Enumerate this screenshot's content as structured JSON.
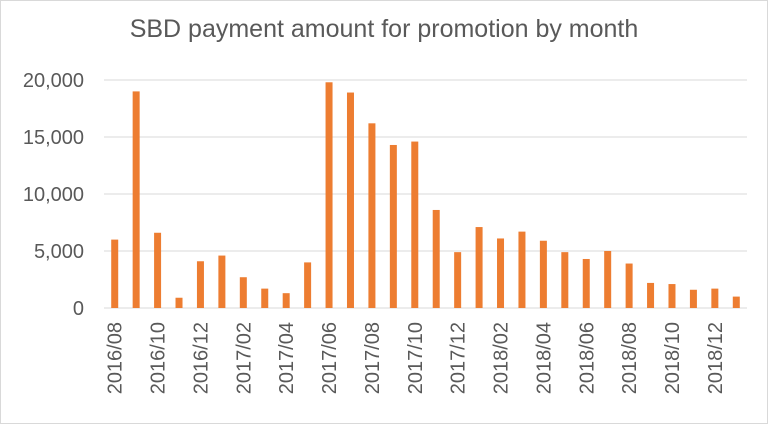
{
  "chart_data": {
    "type": "bar",
    "title": "SBD payment amount for promotion by month",
    "xlabel": "",
    "ylabel": "",
    "ylim": [
      0,
      20000
    ],
    "yticks": [
      0,
      5000,
      10000,
      15000,
      20000
    ],
    "ytick_labels": [
      "0",
      "5,000",
      "10,000",
      "15,000",
      "20,000"
    ],
    "grid": true,
    "legend": "none",
    "bar_color": "#ed7d31",
    "categories": [
      "2016/08",
      "2016/09",
      "2016/10",
      "2016/11",
      "2016/12",
      "2017/01",
      "2017/02",
      "2017/03",
      "2017/04",
      "2017/05",
      "2017/06",
      "2017/07",
      "2017/08",
      "2017/09",
      "2017/10",
      "2017/11",
      "2017/12",
      "2018/01",
      "2018/02",
      "2018/03",
      "2018/04",
      "2018/05",
      "2018/06",
      "2018/07",
      "2018/08",
      "2018/09",
      "2018/10",
      "2018/11",
      "2018/12",
      "2019/01"
    ],
    "xtick_labels": [
      "2016/08",
      "",
      "2016/10",
      "",
      "2016/12",
      "",
      "2017/02",
      "",
      "2017/04",
      "",
      "2017/06",
      "",
      "2017/08",
      "",
      "2017/10",
      "",
      "2017/12",
      "",
      "2018/02",
      "",
      "2018/04",
      "",
      "2018/06",
      "",
      "2018/08",
      "",
      "2018/10",
      "",
      "2018/12",
      ""
    ],
    "values": [
      6000,
      19000,
      6600,
      900,
      4100,
      4600,
      2700,
      1700,
      1300,
      4000,
      19800,
      18900,
      16200,
      14300,
      14600,
      8600,
      4900,
      7100,
      6100,
      6700,
      5900,
      4900,
      4300,
      5000,
      3900,
      2200,
      2100,
      1600,
      1700,
      1000
    ]
  }
}
